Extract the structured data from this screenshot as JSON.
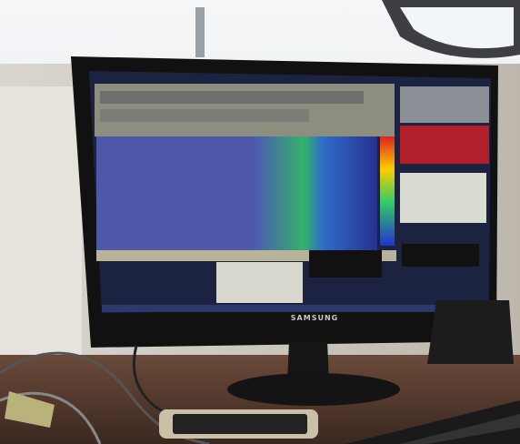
{
  "monitor": {
    "brand": "SAMSUNG"
  }
}
